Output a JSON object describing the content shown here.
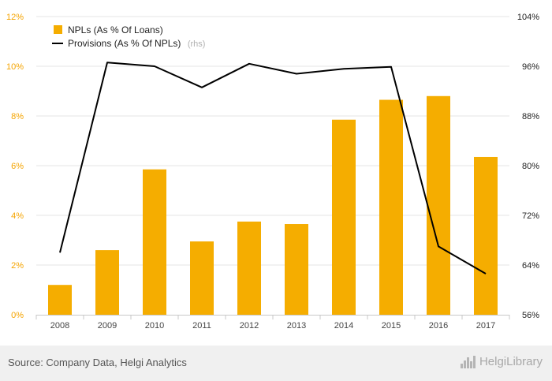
{
  "chart_data": {
    "type": "bar+line",
    "categories": [
      "2008",
      "2009",
      "2010",
      "2011",
      "2012",
      "2013",
      "2014",
      "2015",
      "2016",
      "2017"
    ],
    "series": [
      {
        "name": "NPLs (As % Of Loans)",
        "type": "bar",
        "axis": "left",
        "color": "#f5ad00",
        "values": [
          1.2,
          2.6,
          5.85,
          2.95,
          3.75,
          3.65,
          7.85,
          8.65,
          8.8,
          6.35
        ]
      },
      {
        "name": "Provisions (As % Of NPLs)",
        "name_suffix": "(rhs)",
        "type": "line",
        "axis": "right",
        "color": "#000000",
        "values": [
          66.0,
          96.6,
          96.0,
          92.6,
          96.4,
          94.8,
          95.6,
          95.9,
          67.0,
          62.6
        ]
      }
    ],
    "y_left": {
      "min": 0,
      "max": 12,
      "ticks": [
        "0%",
        "2%",
        "4%",
        "6%",
        "8%",
        "10%",
        "12%"
      ]
    },
    "y_right": {
      "min": 56,
      "max": 104,
      "ticks": [
        "56%",
        "64%",
        "72%",
        "80%",
        "88%",
        "96%",
        "104%"
      ]
    },
    "grid": true,
    "legend_position": "top-left"
  },
  "footer": {
    "source": "Source: Company Data, Helgi Analytics",
    "logo_text": "HelgiLibrary"
  },
  "colors": {
    "bar": "#f5ad00",
    "line": "#000000",
    "left_axis_text": "#f5a400",
    "grid": "#e6e6e6"
  }
}
